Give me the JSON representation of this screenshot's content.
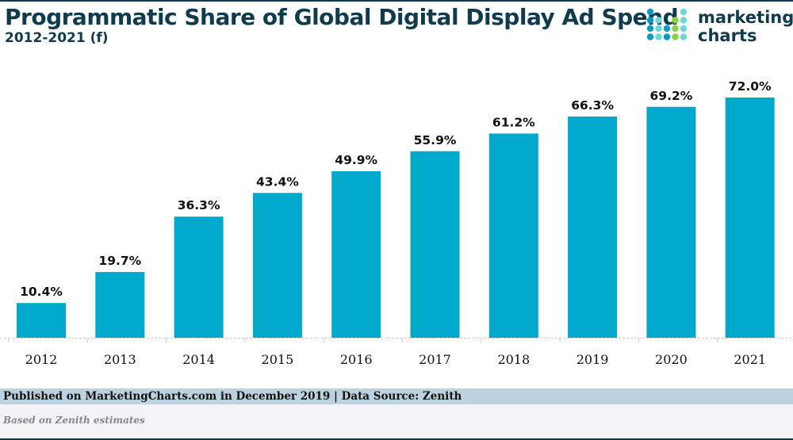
{
  "header": {
    "title": "Programmatic Share of Global Digital Display Ad Spend",
    "subtitle": "2012-2021 (f)"
  },
  "logo": {
    "line1": "marketing",
    "line2": "charts",
    "colors": [
      "#0a9bc4",
      "#6fd6d6",
      "#8cd142"
    ]
  },
  "chart_data": {
    "type": "bar",
    "title": "Programmatic Share of Global Digital Display Ad Spend",
    "subtitle": "2012-2021 (f)",
    "categories": [
      "2012",
      "2013",
      "2014",
      "2015",
      "2016",
      "2017",
      "2018",
      "2019",
      "2020",
      "2021"
    ],
    "values": [
      10.4,
      19.7,
      36.3,
      43.4,
      49.9,
      55.9,
      61.2,
      66.3,
      69.2,
      72.0
    ],
    "labels": [
      "10.4%",
      "19.7%",
      "36.3%",
      "43.4%",
      "49.9%",
      "55.9%",
      "61.2%",
      "66.3%",
      "69.2%",
      "72.0%"
    ],
    "ylim": [
      0,
      72
    ],
    "grid": false,
    "bar_color": "#00a9cc"
  },
  "footer": {
    "published": "Published on MarketingCharts.com in December 2019 | Data Source: Zenith",
    "note": "Based on Zenith estimates"
  }
}
